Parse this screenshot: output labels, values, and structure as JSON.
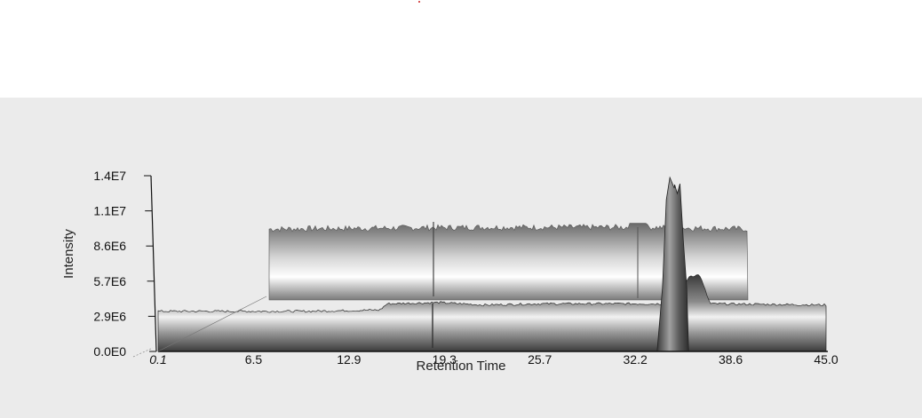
{
  "chart_data": {
    "type": "area",
    "view": "3d-stacked",
    "xlabel": "Retention Time",
    "ylabel": "Intensity",
    "x_ticks": [
      "0.1",
      "6.5",
      "12.9",
      "19.3",
      "25.7",
      "32.2",
      "38.6",
      "45.0"
    ],
    "y_ticks": [
      "0.0E0",
      "2.9E6",
      "5.7E6",
      "8.6E6",
      "1.1E7",
      "1.4E7"
    ],
    "xlim": [
      0.1,
      45.0
    ],
    "ylim": [
      0,
      14000000
    ],
    "grid": false,
    "series": [
      {
        "points": [
          [
            0.1,
            3200000.0
          ],
          [
            10,
            3200000.0
          ],
          [
            15,
            3300000.0
          ],
          [
            15.5,
            3800000.0
          ],
          [
            19,
            3900000.0
          ],
          [
            22,
            3700000.0
          ],
          [
            25.7,
            3800000.0
          ],
          [
            30,
            3800000.0
          ],
          [
            34.9,
            3800000.0
          ],
          [
            35.8,
            6000000.0
          ],
          [
            36.5,
            6100000.0
          ],
          [
            37.2,
            3800000.0
          ],
          [
            45.0,
            3700000.0
          ]
        ]
      },
      {
        "points": [
          [
            0.1,
            4200000.0
          ],
          [
            20,
            4300000.0
          ],
          [
            33.8,
            4300000.0
          ],
          [
            34.2,
            12800000.0
          ],
          [
            34.5,
            14000000.0
          ],
          [
            35.0,
            13500000.0
          ],
          [
            35.5,
            4300000.0
          ],
          [
            36,
            4300000.0
          ],
          [
            45.0,
            4200000.0
          ]
        ]
      }
    ]
  },
  "colors": {
    "plot_bg": "#ebebeb",
    "page_bg": "#ffffff",
    "marker": "#cc2222"
  }
}
